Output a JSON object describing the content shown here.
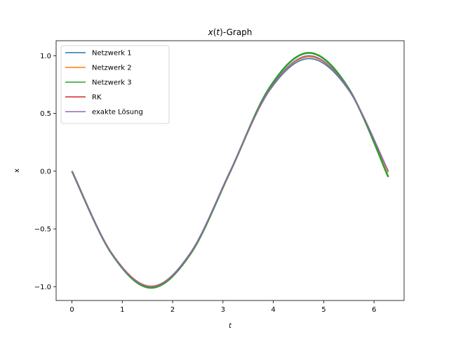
{
  "chart_data": {
    "type": "line",
    "title": "x(t)-Graph",
    "title_parts": {
      "var": "x",
      "open": "(",
      "arg": "t",
      "close": ")",
      "suffix": "-Graph"
    },
    "xlabel": "t",
    "ylabel": "x",
    "xlim": [
      -0.314,
      6.597
    ],
    "ylim": [
      -1.12,
      1.13
    ],
    "xticks": [
      0,
      1,
      2,
      3,
      4,
      5,
      6
    ],
    "yticks": [
      -1.0,
      -0.5,
      0.0,
      0.5,
      1.0
    ],
    "ytick_labels": [
      "−1.0",
      "−0.5",
      "0.0",
      "0.5",
      "1.0"
    ],
    "grid": false,
    "legend_position": "upper-left",
    "series": [
      {
        "name": "Netzwerk 1",
        "color": "#1f77b4",
        "x": [
          0,
          0.785,
          1.571,
          2.356,
          3.142,
          3.927,
          4.712,
          5.498,
          6.283
        ],
        "y": [
          0,
          -0.708,
          -1.0,
          -0.705,
          0.0,
          0.7,
          0.975,
          0.7,
          -0.005
        ]
      },
      {
        "name": "Netzwerk 2",
        "color": "#ff7f0e",
        "x": [
          0,
          0.785,
          1.571,
          2.356,
          3.142,
          3.927,
          4.712,
          5.498,
          6.283
        ],
        "y": [
          0,
          -0.705,
          -0.995,
          -0.708,
          -0.005,
          0.705,
          0.99,
          0.705,
          -0.01
        ]
      },
      {
        "name": "Netzwerk 3",
        "color": "#2ca02c",
        "x": [
          0,
          0.785,
          1.571,
          2.356,
          3.142,
          3.927,
          4.712,
          5.498,
          6.283
        ],
        "y": [
          0,
          -0.712,
          -1.01,
          -0.715,
          -0.005,
          0.725,
          1.025,
          0.715,
          -0.05
        ]
      },
      {
        "name": "RK",
        "color": "#d62728",
        "x": [
          0,
          0.785,
          1.571,
          2.356,
          3.142,
          3.927,
          4.712,
          5.498,
          6.283
        ],
        "y": [
          0,
          -0.707,
          -1.0,
          -0.707,
          0.0,
          0.707,
          1.0,
          0.707,
          0.0
        ]
      },
      {
        "name": "exakte Lösung",
        "color": "#9467bd",
        "x": [
          0,
          0.785,
          1.571,
          2.356,
          3.142,
          3.927,
          4.712,
          5.498,
          6.283
        ],
        "y": [
          0,
          -0.707,
          -1.0,
          -0.707,
          0.0,
          0.707,
          1.0,
          0.707,
          0.0
        ]
      }
    ]
  }
}
